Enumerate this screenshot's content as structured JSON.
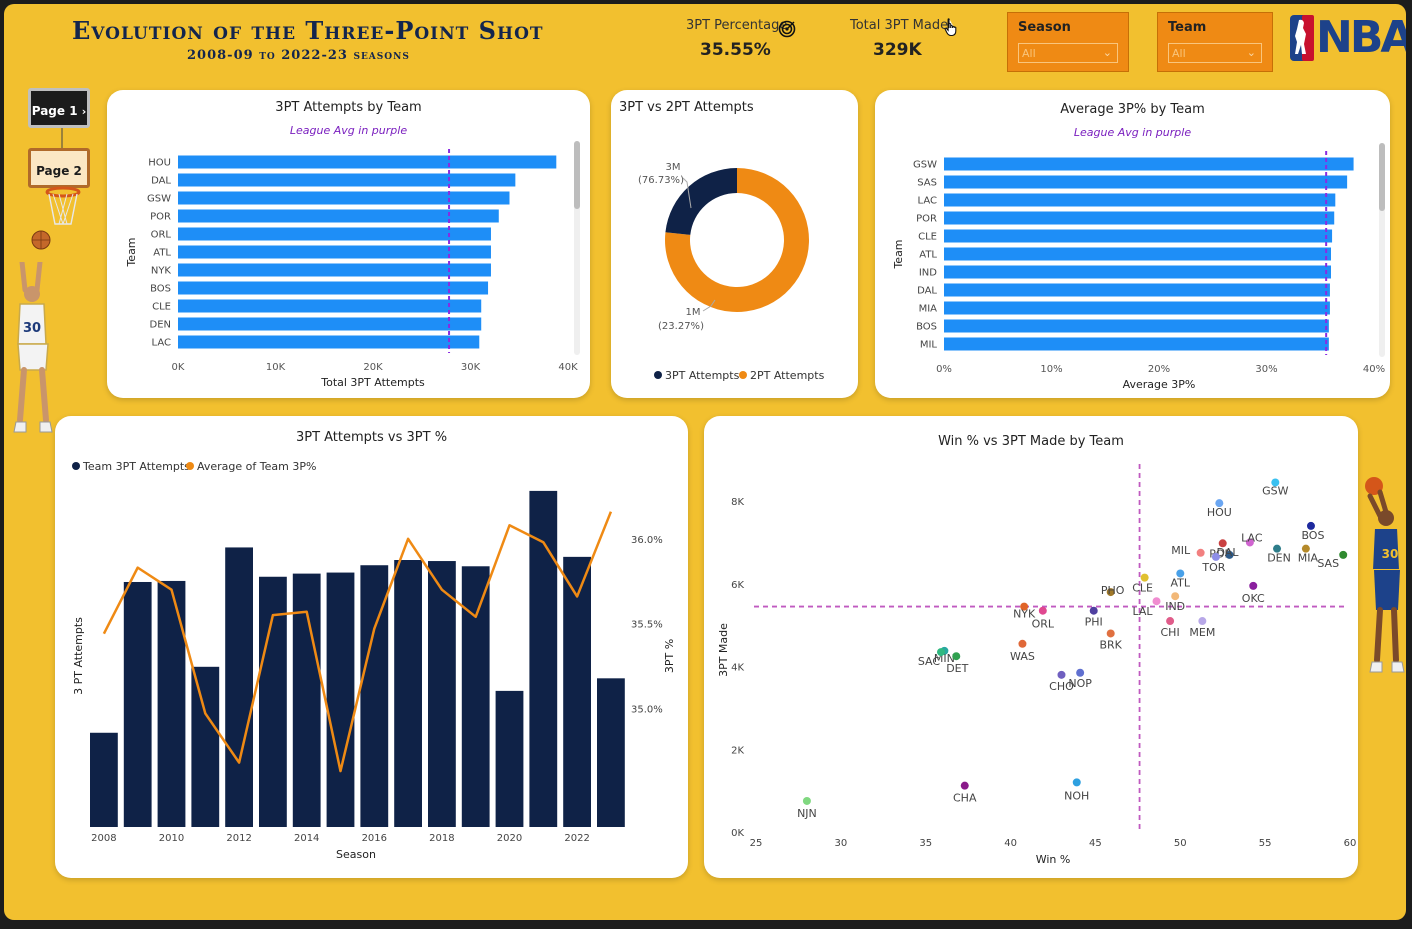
{
  "header": {
    "title": "Evolution of the Three-Point Shot",
    "subtitle": "2008-09 to 2022-23 seasons",
    "logo_text": "NBA"
  },
  "nav": {
    "page1": "Page 1",
    "page2": "Page 2"
  },
  "kpis": [
    {
      "label": "3PT Percentage",
      "value": "35.55%",
      "icon": "target-icon"
    },
    {
      "label": "Total 3PT Made",
      "value": "329K",
      "icon": "hand-pointer-icon"
    }
  ],
  "slicers": {
    "season": {
      "label": "Season",
      "value": "All"
    },
    "team": {
      "label": "Team",
      "value": "All"
    }
  },
  "colors": {
    "accent_blue": "#1e8ef7",
    "navy": "#0f2247",
    "orange": "#ef8a14",
    "league_avg": "#8a2be2",
    "background": "#f2c02f"
  },
  "chart_data": [
    {
      "id": "attempts_by_team",
      "type": "bar",
      "orientation": "horizontal",
      "title": "3PT Attempts by Team",
      "subtitle": "League Avg in purple",
      "categories": [
        "HOU",
        "DAL",
        "GSW",
        "POR",
        "ORL",
        "ATL",
        "NYK",
        "BOS",
        "CLE",
        "DEN",
        "LAC"
      ],
      "values": [
        38800,
        34600,
        34000,
        32900,
        32100,
        32100,
        32100,
        31800,
        31100,
        31100,
        30900
      ],
      "league_avg": 27800,
      "xlim": [
        0,
        40000
      ],
      "xticks": [
        0,
        10000,
        20000,
        30000,
        40000
      ],
      "xticklabels": [
        "0K",
        "10K",
        "20K",
        "30K",
        "40K"
      ],
      "xlabel": "Total 3PT Attempts",
      "ylabel": "Team"
    },
    {
      "id": "three_vs_two",
      "type": "pie",
      "title": "3PT vs 2PT Attempts",
      "labels": [
        "3PT Attempts",
        "2PT Attempts"
      ],
      "values": [
        23.27,
        76.73
      ],
      "value_labels": [
        "1M",
        "3M"
      ],
      "pct_labels": [
        "(23.27%)",
        "(76.73%)"
      ],
      "colors": [
        "#0f2247",
        "#ef8a14"
      ]
    },
    {
      "id": "avg_pct_by_team",
      "type": "bar",
      "orientation": "horizontal",
      "title": "Average 3P% by Team",
      "subtitle": "League Avg in purple",
      "categories": [
        "GSW",
        "SAS",
        "LAC",
        "POR",
        "CLE",
        "ATL",
        "IND",
        "DAL",
        "MIA",
        "BOS",
        "MIL"
      ],
      "values": [
        38.1,
        37.5,
        36.4,
        36.3,
        36.1,
        36.0,
        36.0,
        35.9,
        35.9,
        35.8,
        35.8
      ],
      "league_avg": 35.55,
      "xlim": [
        0,
        40
      ],
      "xticks": [
        0,
        10,
        20,
        30,
        40
      ],
      "xticklabels": [
        "0%",
        "10%",
        "20%",
        "30%",
        "40%"
      ],
      "xlabel": "Average 3P%",
      "ylabel": "Team"
    },
    {
      "id": "attempts_vs_pct",
      "type": "bar",
      "title": "3PT Attempts vs 3PT %",
      "legend": [
        "Team 3PT Attempts",
        "Average of Team 3P%"
      ],
      "x": [
        2008,
        2009,
        2010,
        2011,
        2012,
        2013,
        2014,
        2015,
        2016,
        2017,
        2018,
        2019,
        2020,
        2021,
        2022,
        2023
      ],
      "series": [
        {
          "name": "Team 3PT Attempts",
          "type": "bar",
          "values": [
            0.9,
            2.34,
            2.35,
            1.53,
            2.67,
            2.39,
            2.42,
            2.43,
            2.5,
            2.55,
            2.54,
            2.49,
            1.3,
            3.21,
            2.58,
            1.42
          ]
        },
        {
          "name": "Average of Team 3P%",
          "type": "line",
          "values": [
            35.44,
            35.83,
            35.7,
            34.97,
            34.68,
            35.55,
            35.57,
            34.63,
            35.47,
            36.0,
            35.7,
            35.54,
            36.08,
            35.98,
            35.66,
            36.16
          ]
        }
      ],
      "y_left_lim": [
        0,
        3.4
      ],
      "y_right_lim": [
        34.3,
        36.4
      ],
      "y_right_ticks": [
        35.0,
        35.5,
        36.0
      ],
      "y_right_ticklabels": [
        "35.0%",
        "35.5%",
        "36.0%"
      ],
      "xticks": [
        2008,
        2010,
        2012,
        2014,
        2016,
        2018,
        2020,
        2022
      ],
      "xlabel": "Season",
      "ylabel_left": "3 PT Attempts",
      "ylabel_right": "3PT %"
    },
    {
      "id": "win_vs_made",
      "type": "scatter",
      "title": "Win % vs 3PT Made by Team",
      "xlabel": "Win %",
      "ylabel": "3PT Made",
      "xlim": [
        25,
        60
      ],
      "ylim": [
        0,
        8800
      ],
      "xticks": [
        25,
        30,
        35,
        40,
        45,
        50,
        55,
        60
      ],
      "yticks": [
        0,
        2000,
        4000,
        6000,
        8000
      ],
      "yticklabels": [
        "0K",
        "2K",
        "4K",
        "6K",
        "8K"
      ],
      "ref_x": 47.6,
      "ref_y": 5450,
      "points": [
        {
          "team": "GSW",
          "x": 55.6,
          "y": 8450,
          "color": "#39c0f0",
          "label": "GSW"
        },
        {
          "team": "HOU",
          "x": 52.3,
          "y": 7950,
          "color": "#6aa6f2",
          "label": "HOU"
        },
        {
          "team": "BOS",
          "x": 57.7,
          "y": 7400,
          "color": "#1e2a9e",
          "label": "BOS"
        },
        {
          "team": "POR",
          "x": 52.5,
          "y": 6980,
          "color": "#c94040",
          "label": "POR"
        },
        {
          "team": "DAL",
          "x": 52.9,
          "y": 6700,
          "color": "#2d5b8a",
          "label": "DAL"
        },
        {
          "team": "LAC",
          "x": 54.1,
          "y": 7000,
          "color": "#d064d0",
          "label": "LAC"
        },
        {
          "team": "MIL",
          "x": 51.2,
          "y": 6750,
          "color": "#f28080",
          "label": "MIL"
        },
        {
          "team": "DEN",
          "x": 55.7,
          "y": 6850,
          "color": "#2e7d8a",
          "label": "DEN"
        },
        {
          "team": "MIA",
          "x": 57.4,
          "y": 6850,
          "color": "#b58a2a",
          "label": "MIA"
        },
        {
          "team": "SAS",
          "x": 59.6,
          "y": 6700,
          "color": "#2f8a2f",
          "label": "SAS"
        },
        {
          "team": "TOR",
          "x": 52.1,
          "y": 6650,
          "color": "#8e8ee8",
          "label": "TOR"
        },
        {
          "team": "OKC",
          "x": 54.3,
          "y": 5950,
          "color": "#8a1f9e",
          "label": "OKC"
        },
        {
          "team": "ATL",
          "x": 50.0,
          "y": 6250,
          "color": "#48a0e8",
          "label": "ATL"
        },
        {
          "team": "CLE",
          "x": 47.9,
          "y": 6150,
          "color": "#e0c030",
          "label": "CLE"
        },
        {
          "team": "IND",
          "x": 49.7,
          "y": 5700,
          "color": "#f2b878",
          "label": "IND"
        },
        {
          "team": "LAL",
          "x": 48.6,
          "y": 5580,
          "color": "#f08cd0",
          "label": "LAL"
        },
        {
          "team": "CHI",
          "x": 49.4,
          "y": 5100,
          "color": "#e05c8a",
          "label": "CHI"
        },
        {
          "team": "MEM",
          "x": 51.3,
          "y": 5100,
          "color": "#b8a8e8",
          "label": "MEM"
        },
        {
          "team": "PHO",
          "x": 45.9,
          "y": 5800,
          "color": "#a07828",
          "label": "PHO"
        },
        {
          "team": "PHI",
          "x": 44.9,
          "y": 5350,
          "color": "#5040a0",
          "label": "PHI"
        },
        {
          "team": "BRK",
          "x": 45.9,
          "y": 4800,
          "color": "#e07040",
          "label": "BRK"
        },
        {
          "team": "NYK",
          "x": 40.8,
          "y": 5450,
          "color": "#e06428",
          "label": "NYK"
        },
        {
          "team": "ORL",
          "x": 41.9,
          "y": 5350,
          "color": "#e04890",
          "label": "ORL"
        },
        {
          "team": "WAS",
          "x": 40.7,
          "y": 4550,
          "color": "#e06838",
          "label": "WAS"
        },
        {
          "team": "NOP",
          "x": 44.1,
          "y": 3850,
          "color": "#6070d0",
          "label": "NOP"
        },
        {
          "team": "CHO",
          "x": 43.0,
          "y": 3800,
          "color": "#7060c0",
          "label": "CHO"
        },
        {
          "team": "MIN",
          "x": 36.1,
          "y": 4380,
          "color": "#28a8a0",
          "label": "MIN"
        },
        {
          "team": "SAC",
          "x": 35.9,
          "y": 4350,
          "color": "#30b880",
          "label": "SAC"
        },
        {
          "team": "DET",
          "x": 36.8,
          "y": 4250,
          "color": "#30a050",
          "label": "DET"
        },
        {
          "team": "CHA",
          "x": 37.3,
          "y": 1120,
          "color": "#8a1a8a",
          "label": "CHA"
        },
        {
          "team": "NOH",
          "x": 43.9,
          "y": 1200,
          "color": "#2ea0e0",
          "label": "NOH"
        },
        {
          "team": "NJN",
          "x": 28.0,
          "y": 750,
          "color": "#80d880",
          "label": "NJN"
        }
      ]
    }
  ]
}
